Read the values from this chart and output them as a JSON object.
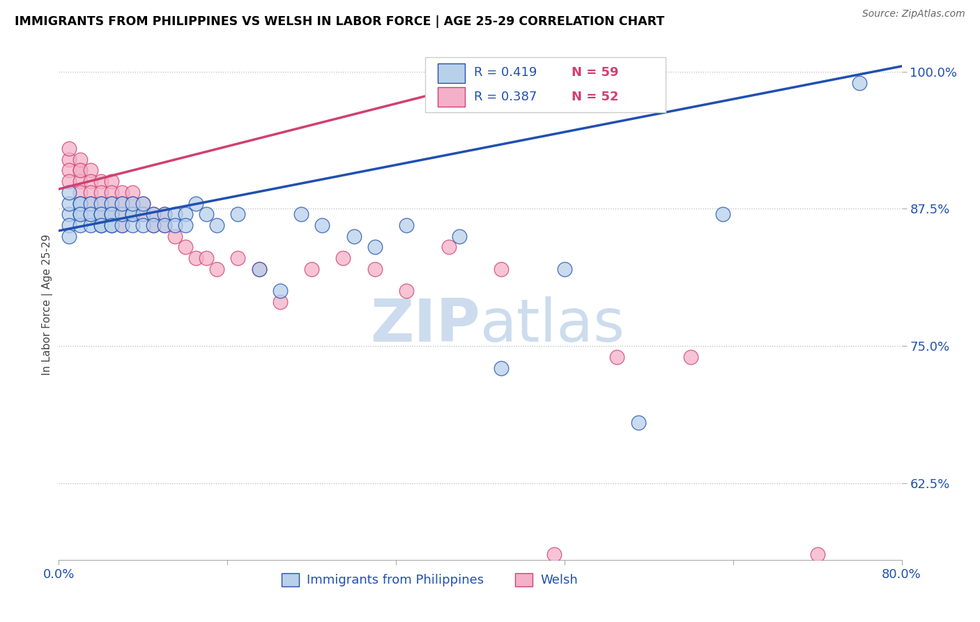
{
  "title": "IMMIGRANTS FROM PHILIPPINES VS WELSH IN LABOR FORCE | AGE 25-29 CORRELATION CHART",
  "source": "Source: ZipAtlas.com",
  "ylabel": "In Labor Force | Age 25-29",
  "xlim": [
    0.0,
    0.8
  ],
  "ylim": [
    0.555,
    1.02
  ],
  "yticks": [
    0.625,
    0.75,
    0.875,
    1.0
  ],
  "ytick_labels": [
    "62.5%",
    "75.0%",
    "87.5%",
    "100.0%"
  ],
  "xticks": [
    0.0,
    0.16,
    0.32,
    0.48,
    0.64,
    0.8
  ],
  "xtick_labels": [
    "0.0%",
    "",
    "",
    "",
    "",
    "80.0%"
  ],
  "blue_R": 0.419,
  "blue_N": 59,
  "pink_R": 0.387,
  "pink_N": 52,
  "blue_color": "#b8d0ea",
  "pink_color": "#f4b0c8",
  "blue_line_color": "#2050b0",
  "pink_line_color": "#d04070",
  "watermark_color": "#ccdcee",
  "blue_scatter_x": [
    0.01,
    0.01,
    0.01,
    0.01,
    0.01,
    0.02,
    0.02,
    0.02,
    0.02,
    0.02,
    0.03,
    0.03,
    0.03,
    0.03,
    0.04,
    0.04,
    0.04,
    0.04,
    0.04,
    0.05,
    0.05,
    0.05,
    0.05,
    0.05,
    0.06,
    0.06,
    0.06,
    0.07,
    0.07,
    0.07,
    0.07,
    0.08,
    0.08,
    0.08,
    0.09,
    0.09,
    0.1,
    0.1,
    0.11,
    0.11,
    0.12,
    0.12,
    0.13,
    0.14,
    0.15,
    0.17,
    0.19,
    0.21,
    0.23,
    0.25,
    0.28,
    0.3,
    0.33,
    0.38,
    0.42,
    0.48,
    0.55,
    0.63,
    0.76
  ],
  "blue_scatter_y": [
    0.87,
    0.88,
    0.89,
    0.86,
    0.85,
    0.88,
    0.87,
    0.86,
    0.88,
    0.87,
    0.87,
    0.86,
    0.88,
    0.87,
    0.87,
    0.86,
    0.88,
    0.87,
    0.86,
    0.86,
    0.87,
    0.88,
    0.87,
    0.86,
    0.86,
    0.87,
    0.88,
    0.87,
    0.86,
    0.87,
    0.88,
    0.87,
    0.86,
    0.88,
    0.87,
    0.86,
    0.87,
    0.86,
    0.87,
    0.86,
    0.87,
    0.86,
    0.88,
    0.87,
    0.86,
    0.87,
    0.82,
    0.8,
    0.87,
    0.86,
    0.85,
    0.84,
    0.86,
    0.85,
    0.73,
    0.82,
    0.68,
    0.87,
    0.99
  ],
  "pink_scatter_x": [
    0.01,
    0.01,
    0.01,
    0.01,
    0.02,
    0.02,
    0.02,
    0.02,
    0.02,
    0.03,
    0.03,
    0.03,
    0.03,
    0.04,
    0.04,
    0.04,
    0.04,
    0.05,
    0.05,
    0.05,
    0.05,
    0.06,
    0.06,
    0.06,
    0.06,
    0.07,
    0.07,
    0.07,
    0.08,
    0.08,
    0.09,
    0.09,
    0.1,
    0.1,
    0.11,
    0.12,
    0.13,
    0.14,
    0.15,
    0.17,
    0.19,
    0.21,
    0.24,
    0.27,
    0.3,
    0.33,
    0.37,
    0.42,
    0.47,
    0.53,
    0.6,
    0.72
  ],
  "pink_scatter_y": [
    0.92,
    0.91,
    0.93,
    0.9,
    0.91,
    0.92,
    0.9,
    0.89,
    0.91,
    0.91,
    0.9,
    0.89,
    0.88,
    0.9,
    0.89,
    0.88,
    0.87,
    0.9,
    0.89,
    0.88,
    0.87,
    0.89,
    0.88,
    0.87,
    0.86,
    0.89,
    0.88,
    0.87,
    0.88,
    0.87,
    0.87,
    0.86,
    0.87,
    0.86,
    0.85,
    0.84,
    0.83,
    0.83,
    0.82,
    0.83,
    0.82,
    0.79,
    0.82,
    0.83,
    0.82,
    0.8,
    0.84,
    0.82,
    0.56,
    0.74,
    0.74,
    0.56
  ]
}
